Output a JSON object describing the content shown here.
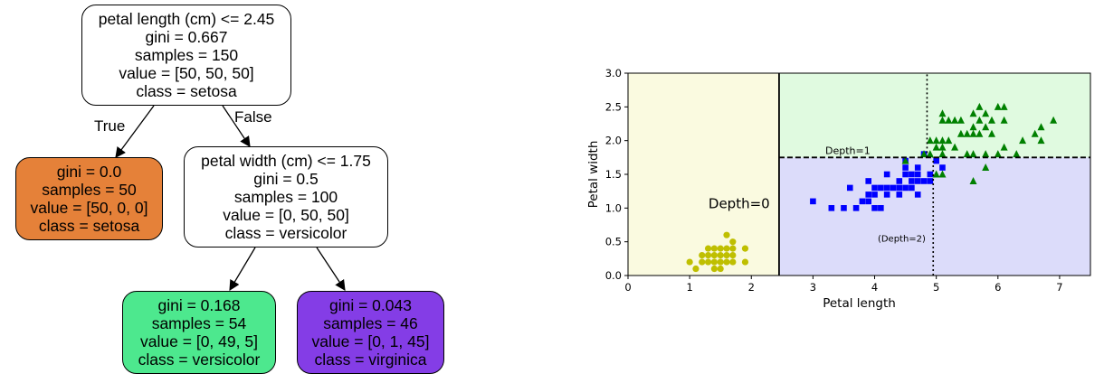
{
  "tree": {
    "root": {
      "lines": [
        "petal length (cm) <= 2.45",
        "gini = 0.667",
        "samples = 150",
        "value = [50, 50, 50]",
        "class = setosa"
      ],
      "fill": "#ffffff"
    },
    "left": {
      "lines": [
        "gini = 0.0",
        "samples = 50",
        "value = [50, 0, 0]",
        "class = setosa"
      ],
      "fill": "#e58139"
    },
    "right": {
      "lines": [
        "petal width (cm) <= 1.75",
        "gini = 0.5",
        "samples = 100",
        "value = [0, 50, 50]",
        "class = versicolor"
      ],
      "fill": "#ffffff"
    },
    "right_left": {
      "lines": [
        "gini = 0.168",
        "samples = 54",
        "value = [0, 49, 5]",
        "class = versicolor"
      ],
      "fill": "#4de88e"
    },
    "right_right": {
      "lines": [
        "gini = 0.043",
        "samples = 46",
        "value = [0, 1, 45]",
        "class = virginica"
      ],
      "fill": "#843de6"
    },
    "edge_true": "True",
    "edge_false": "False"
  },
  "chart_data": {
    "type": "scatter",
    "xlabel": "Petal length",
    "ylabel": "Petal width",
    "xlim": [
      0,
      7.5
    ],
    "ylim": [
      0,
      3.0
    ],
    "xticks": [
      "0",
      "1",
      "2",
      "3",
      "4",
      "5",
      "6",
      "7"
    ],
    "yticks": [
      "0.0",
      "0.5",
      "1.0",
      "1.5",
      "2.0",
      "2.5",
      "3.0"
    ],
    "regions": [
      {
        "class": "setosa",
        "x": [
          0,
          2.45
        ],
        "y": [
          0,
          3.0
        ],
        "color": "#fafae0"
      },
      {
        "class": "versicolor",
        "x": [
          2.45,
          7.5
        ],
        "y": [
          0,
          1.75
        ],
        "color": "#dcdcfa"
      },
      {
        "class": "virginica",
        "x": [
          2.45,
          7.5
        ],
        "y": [
          1.75,
          3.0
        ],
        "color": "#e0fae0"
      }
    ],
    "boundaries": [
      {
        "label": "Depth=0",
        "style": "solid",
        "axis": "x",
        "value": 2.45
      },
      {
        "label": "Depth=1",
        "style": "dashed",
        "axis": "y",
        "value": 1.75
      },
      {
        "label": "(Depth=2)",
        "style": "dotted",
        "axis": "x",
        "value": 4.95,
        "range": [
          0,
          1.75
        ]
      },
      {
        "label": "",
        "style": "dotted",
        "axis": "x",
        "value": 4.85,
        "range": [
          1.75,
          3.0
        ]
      }
    ],
    "series": [
      {
        "name": "setosa",
        "marker": "circle",
        "color": "#bfbf00",
        "points": [
          [
            1.0,
            0.2
          ],
          [
            1.1,
            0.1
          ],
          [
            1.2,
            0.2
          ],
          [
            1.3,
            0.2
          ],
          [
            1.3,
            0.3
          ],
          [
            1.3,
            0.4
          ],
          [
            1.4,
            0.1
          ],
          [
            1.4,
            0.2
          ],
          [
            1.4,
            0.3
          ],
          [
            1.5,
            0.1
          ],
          [
            1.5,
            0.2
          ],
          [
            1.5,
            0.3
          ],
          [
            1.5,
            0.4
          ],
          [
            1.6,
            0.2
          ],
          [
            1.6,
            0.4
          ],
          [
            1.6,
            0.6
          ],
          [
            1.7,
            0.2
          ],
          [
            1.7,
            0.3
          ],
          [
            1.7,
            0.4
          ],
          [
            1.7,
            0.5
          ],
          [
            1.9,
            0.2
          ],
          [
            1.9,
            0.4
          ],
          [
            1.2,
            0.3
          ],
          [
            1.4,
            0.4
          ],
          [
            1.6,
            0.3
          ]
        ]
      },
      {
        "name": "versicolor",
        "marker": "square",
        "color": "#0000ff",
        "points": [
          [
            3.0,
            1.1
          ],
          [
            3.3,
            1.0
          ],
          [
            3.5,
            1.0
          ],
          [
            3.6,
            1.3
          ],
          [
            3.7,
            1.0
          ],
          [
            3.8,
            1.1
          ],
          [
            3.9,
            1.1
          ],
          [
            3.9,
            1.2
          ],
          [
            3.9,
            1.4
          ],
          [
            4.0,
            1.0
          ],
          [
            4.0,
            1.2
          ],
          [
            4.0,
            1.3
          ],
          [
            4.1,
            1.0
          ],
          [
            4.1,
            1.3
          ],
          [
            4.2,
            1.2
          ],
          [
            4.2,
            1.3
          ],
          [
            4.2,
            1.5
          ],
          [
            4.3,
            1.3
          ],
          [
            4.4,
            1.2
          ],
          [
            4.4,
            1.3
          ],
          [
            4.4,
            1.4
          ],
          [
            4.5,
            1.3
          ],
          [
            4.5,
            1.5
          ],
          [
            4.6,
            1.3
          ],
          [
            4.6,
            1.4
          ],
          [
            4.6,
            1.5
          ],
          [
            4.7,
            1.2
          ],
          [
            4.7,
            1.4
          ],
          [
            4.7,
            1.5
          ],
          [
            4.8,
            1.4
          ],
          [
            4.8,
            1.8
          ],
          [
            4.9,
            1.5
          ],
          [
            5.0,
            1.7
          ],
          [
            4.5,
            1.6
          ],
          [
            5.1,
            1.6
          ],
          [
            4.9,
            1.4
          ],
          [
            4.7,
            1.6
          ],
          [
            4.5,
            1.7
          ]
        ]
      },
      {
        "name": "virginica",
        "marker": "triangle",
        "color": "#008000",
        "points": [
          [
            4.5,
            1.7
          ],
          [
            4.8,
            1.8
          ],
          [
            4.9,
            1.8
          ],
          [
            4.9,
            2.0
          ],
          [
            5.0,
            1.5
          ],
          [
            5.0,
            1.9
          ],
          [
            5.0,
            2.0
          ],
          [
            5.1,
            1.5
          ],
          [
            5.1,
            1.8
          ],
          [
            5.1,
            1.9
          ],
          [
            5.1,
            2.0
          ],
          [
            5.1,
            2.3
          ],
          [
            5.1,
            2.4
          ],
          [
            5.2,
            2.0
          ],
          [
            5.2,
            2.3
          ],
          [
            5.3,
            1.9
          ],
          [
            5.3,
            2.3
          ],
          [
            5.4,
            2.1
          ],
          [
            5.4,
            2.3
          ],
          [
            5.5,
            1.8
          ],
          [
            5.5,
            2.1
          ],
          [
            5.6,
            1.4
          ],
          [
            5.6,
            1.8
          ],
          [
            5.6,
            2.1
          ],
          [
            5.6,
            2.2
          ],
          [
            5.6,
            2.4
          ],
          [
            5.7,
            2.1
          ],
          [
            5.7,
            2.3
          ],
          [
            5.7,
            2.5
          ],
          [
            5.8,
            1.6
          ],
          [
            5.8,
            1.8
          ],
          [
            5.8,
            2.2
          ],
          [
            5.8,
            2.4
          ],
          [
            5.9,
            2.1
          ],
          [
            5.9,
            2.3
          ],
          [
            6.0,
            1.8
          ],
          [
            6.0,
            2.5
          ],
          [
            6.1,
            1.9
          ],
          [
            6.1,
            2.3
          ],
          [
            6.1,
            2.5
          ],
          [
            6.3,
            1.8
          ],
          [
            6.4,
            2.0
          ],
          [
            6.6,
            2.1
          ],
          [
            6.7,
            2.0
          ],
          [
            6.7,
            2.2
          ],
          [
            6.9,
            2.3
          ]
        ]
      }
    ],
    "annotations": [
      {
        "text": "Depth=0",
        "x": 2.3,
        "y": 1.0,
        "size": 15
      },
      {
        "text": "Depth=1",
        "x": 3.2,
        "y": 1.8,
        "size": 11
      },
      {
        "text": "(Depth=2)",
        "x": 4.05,
        "y": 0.5,
        "size": 10
      }
    ]
  }
}
